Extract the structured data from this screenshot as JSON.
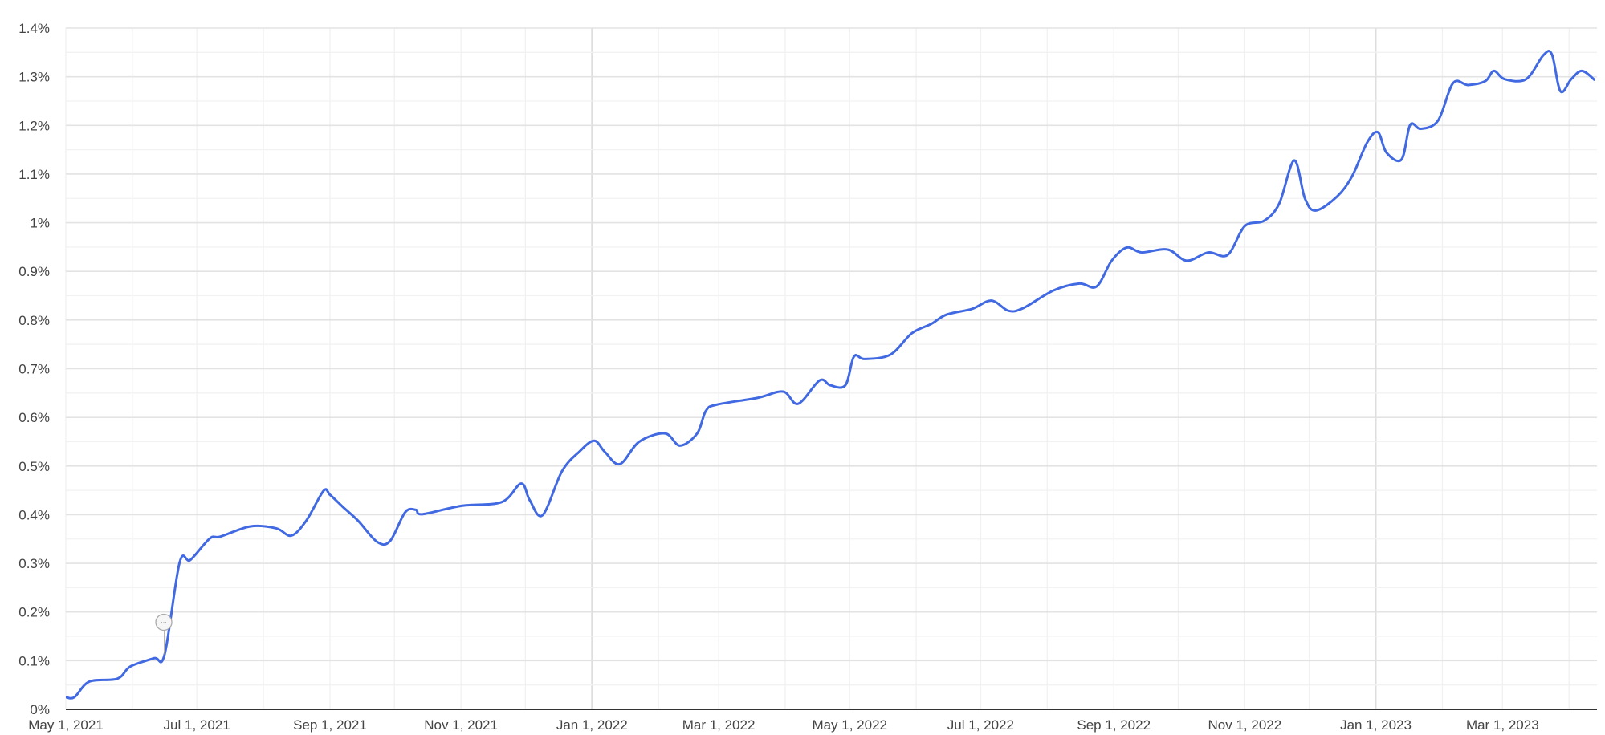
{
  "chart_data": {
    "type": "line",
    "title": "",
    "xlabel": "",
    "ylabel": "",
    "grid": true,
    "legend": "none",
    "line_color": "#4169e1",
    "xlim": [
      "2021-05-01",
      "2023-04-14"
    ],
    "ylim": [
      0,
      1.4
    ],
    "y_ticks": [
      {
        "value": 0,
        "label": "0%"
      },
      {
        "value": 0.1,
        "label": "0.1%"
      },
      {
        "value": 0.2,
        "label": "0.2%"
      },
      {
        "value": 0.3,
        "label": "0.3%"
      },
      {
        "value": 0.4,
        "label": "0.4%"
      },
      {
        "value": 0.5,
        "label": "0.5%"
      },
      {
        "value": 0.6,
        "label": "0.6%"
      },
      {
        "value": 0.7,
        "label": "0.7%"
      },
      {
        "value": 0.8,
        "label": "0.8%"
      },
      {
        "value": 0.9,
        "label": "0.9%"
      },
      {
        "value": 1.0,
        "label": "1%"
      },
      {
        "value": 1.1,
        "label": "1.1%"
      },
      {
        "value": 1.2,
        "label": "1.2%"
      },
      {
        "value": 1.3,
        "label": "1.3%"
      },
      {
        "value": 1.4,
        "label": "1.4%"
      }
    ],
    "x_ticks": [
      {
        "date": "2021-05-01",
        "label": "May 1, 2021"
      },
      {
        "date": "2021-07-01",
        "label": "Jul 1, 2021"
      },
      {
        "date": "2021-09-01",
        "label": "Sep 1, 2021"
      },
      {
        "date": "2021-11-01",
        "label": "Nov 1, 2021"
      },
      {
        "date": "2022-01-01",
        "label": "Jan 1, 2022"
      },
      {
        "date": "2022-03-01",
        "label": "Mar 1, 2022"
      },
      {
        "date": "2022-05-01",
        "label": "May 1, 2022"
      },
      {
        "date": "2022-07-01",
        "label": "Jul 1, 2022"
      },
      {
        "date": "2022-09-01",
        "label": "Sep 1, 2022"
      },
      {
        "date": "2022-11-01",
        "label": "Nov 1, 2022"
      },
      {
        "date": "2023-01-01",
        "label": "Jan 1, 2023"
      },
      {
        "date": "2023-03-01",
        "label": "Mar 1, 2023"
      }
    ],
    "annotations": [
      {
        "date": "2021-06-16",
        "value": 0.113,
        "label": "..."
      }
    ],
    "series": [
      {
        "points": [
          [
            "2021-05-01",
            0.025
          ],
          [
            "2021-05-05",
            0.025
          ],
          [
            "2021-05-12",
            0.057
          ],
          [
            "2021-05-25",
            0.063
          ],
          [
            "2021-05-31",
            0.088
          ],
          [
            "2021-06-11",
            0.105
          ],
          [
            "2021-06-16",
            0.113
          ],
          [
            "2021-06-23",
            0.302
          ],
          [
            "2021-06-28",
            0.307
          ],
          [
            "2021-07-07",
            0.351
          ],
          [
            "2021-07-12",
            0.355
          ],
          [
            "2021-07-26",
            0.376
          ],
          [
            "2021-08-07",
            0.372
          ],
          [
            "2021-08-14",
            0.357
          ],
          [
            "2021-08-21",
            0.388
          ],
          [
            "2021-08-29",
            0.449
          ],
          [
            "2021-09-01",
            0.441
          ],
          [
            "2021-09-07",
            0.416
          ],
          [
            "2021-09-14",
            0.388
          ],
          [
            "2021-09-23",
            0.344
          ],
          [
            "2021-09-29",
            0.346
          ],
          [
            "2021-10-06",
            0.405
          ],
          [
            "2021-10-11",
            0.41
          ],
          [
            "2021-10-14",
            0.401
          ],
          [
            "2021-11-01",
            0.418
          ],
          [
            "2021-11-20",
            0.426
          ],
          [
            "2021-11-29",
            0.464
          ],
          [
            "2021-12-03",
            0.43
          ],
          [
            "2021-12-09",
            0.399
          ],
          [
            "2021-12-18",
            0.489
          ],
          [
            "2021-12-26",
            0.529
          ],
          [
            "2022-01-02",
            0.552
          ],
          [
            "2022-01-07",
            0.529
          ],
          [
            "2022-01-14",
            0.504
          ],
          [
            "2022-01-23",
            0.55
          ],
          [
            "2022-02-04",
            0.567
          ],
          [
            "2022-02-11",
            0.542
          ],
          [
            "2022-02-19",
            0.567
          ],
          [
            "2022-02-23",
            0.613
          ],
          [
            "2022-02-28",
            0.626
          ],
          [
            "2022-03-19",
            0.64
          ],
          [
            "2022-03-31",
            0.653
          ],
          [
            "2022-04-07",
            0.628
          ],
          [
            "2022-04-17",
            0.676
          ],
          [
            "2022-04-22",
            0.666
          ],
          [
            "2022-04-29",
            0.666
          ],
          [
            "2022-05-03",
            0.725
          ],
          [
            "2022-05-08",
            0.72
          ],
          [
            "2022-05-20",
            0.729
          ],
          [
            "2022-05-30",
            0.773
          ],
          [
            "2022-06-08",
            0.792
          ],
          [
            "2022-06-15",
            0.811
          ],
          [
            "2022-06-27",
            0.823
          ],
          [
            "2022-07-06",
            0.84
          ],
          [
            "2022-07-14",
            0.819
          ],
          [
            "2022-07-21",
            0.825
          ],
          [
            "2022-08-04",
            0.861
          ],
          [
            "2022-08-16",
            0.875
          ],
          [
            "2022-08-24",
            0.869
          ],
          [
            "2022-08-31",
            0.922
          ],
          [
            "2022-09-07",
            0.949
          ],
          [
            "2022-09-14",
            0.939
          ],
          [
            "2022-09-26",
            0.945
          ],
          [
            "2022-10-05",
            0.922
          ],
          [
            "2022-10-15",
            0.939
          ],
          [
            "2022-10-24",
            0.934
          ],
          [
            "2022-11-01",
            0.993
          ],
          [
            "2022-11-10",
            1.004
          ],
          [
            "2022-11-17",
            1.039
          ],
          [
            "2022-11-24",
            1.128
          ],
          [
            "2022-11-29",
            1.05
          ],
          [
            "2022-12-04",
            1.025
          ],
          [
            "2022-12-14",
            1.054
          ],
          [
            "2022-12-21",
            1.096
          ],
          [
            "2022-12-28",
            1.165
          ],
          [
            "2023-01-02",
            1.186
          ],
          [
            "2023-01-06",
            1.144
          ],
          [
            "2023-01-13",
            1.13
          ],
          [
            "2023-01-17",
            1.201
          ],
          [
            "2023-01-22",
            1.193
          ],
          [
            "2023-01-30",
            1.21
          ],
          [
            "2023-02-06",
            1.287
          ],
          [
            "2023-02-13",
            1.283
          ],
          [
            "2023-02-21",
            1.291
          ],
          [
            "2023-02-25",
            1.312
          ],
          [
            "2023-03-02",
            1.295
          ],
          [
            "2023-03-12",
            1.295
          ],
          [
            "2023-03-20",
            1.344
          ],
          [
            "2023-03-24",
            1.346
          ],
          [
            "2023-03-28",
            1.27
          ],
          [
            "2023-04-02",
            1.295
          ],
          [
            "2023-04-07",
            1.312
          ],
          [
            "2023-04-13",
            1.293
          ]
        ]
      }
    ]
  }
}
